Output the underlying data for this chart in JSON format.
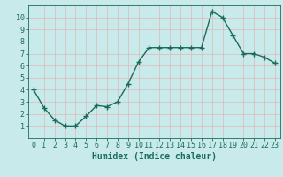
{
  "x": [
    0,
    1,
    2,
    3,
    4,
    5,
    6,
    7,
    8,
    9,
    10,
    11,
    12,
    13,
    14,
    15,
    16,
    17,
    18,
    19,
    20,
    21,
    22,
    23
  ],
  "y": [
    4,
    2.5,
    1.5,
    1,
    1,
    1.8,
    2.7,
    2.6,
    3,
    4.5,
    6.3,
    7.5,
    7.5,
    7.5,
    7.5,
    7.5,
    7.5,
    10.5,
    10,
    8.5,
    7,
    7,
    6.7,
    6.2
  ],
  "line_color": "#1a6b5a",
  "marker": "+",
  "marker_size": 4,
  "background_color": "#c8eaea",
  "grid_color": "#e0b8b8",
  "xlabel": "Humidex (Indice chaleur)",
  "xlabel_fontsize": 7,
  "xlim": [
    -0.5,
    23.5
  ],
  "ylim": [
    0,
    11
  ],
  "yticks": [
    1,
    2,
    3,
    4,
    5,
    6,
    7,
    8,
    9,
    10
  ],
  "xticks": [
    0,
    1,
    2,
    3,
    4,
    5,
    6,
    7,
    8,
    9,
    10,
    11,
    12,
    13,
    14,
    15,
    16,
    17,
    18,
    19,
    20,
    21,
    22,
    23
  ],
  "tick_fontsize": 6,
  "line_width": 1.0
}
